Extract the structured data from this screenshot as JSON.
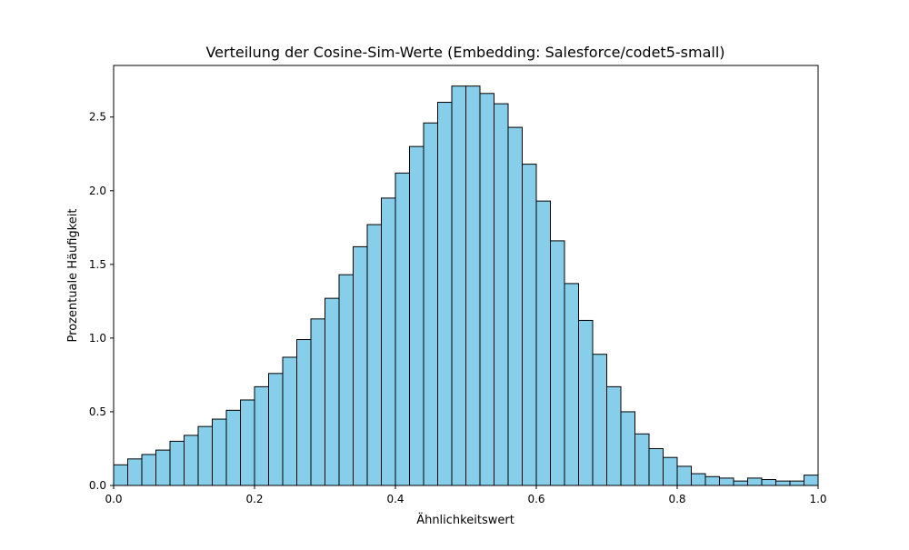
{
  "chart_data": {
    "type": "bar",
    "title": "Verteilung der Cosine-Sim-Werte (Embedding: Salesforce/codet5-small)",
    "xlabel": "Ähnlichkeitswert",
    "ylabel": "Prozentuale Häufigkeit",
    "xlim": [
      0.0,
      1.0
    ],
    "ylim": [
      0.0,
      2.85
    ],
    "grid": false,
    "bar_color": "#87CEEB",
    "edge_color": "#000000",
    "x_ticks": [
      "0.0",
      "0.2",
      "0.4",
      "0.6",
      "0.8",
      "1.0"
    ],
    "y_ticks": [
      "0.0",
      "0.5",
      "1.0",
      "1.5",
      "2.0",
      "2.5"
    ],
    "bin_edges": [
      0.0,
      0.02,
      0.04,
      0.06,
      0.08,
      0.1,
      0.12,
      0.14,
      0.16,
      0.18,
      0.2,
      0.22,
      0.24,
      0.26,
      0.28,
      0.3,
      0.32,
      0.34,
      0.36,
      0.38,
      0.4,
      0.42,
      0.44,
      0.46,
      0.48,
      0.5,
      0.52,
      0.54,
      0.56,
      0.58,
      0.6,
      0.62,
      0.64,
      0.66,
      0.68,
      0.7,
      0.72,
      0.74,
      0.76,
      0.78,
      0.8,
      0.82,
      0.84,
      0.86,
      0.88,
      0.9,
      0.92,
      0.94,
      0.96,
      0.98,
      1.0
    ],
    "values": [
      0.14,
      0.18,
      0.21,
      0.24,
      0.3,
      0.34,
      0.4,
      0.45,
      0.51,
      0.58,
      0.67,
      0.76,
      0.87,
      0.99,
      1.13,
      1.27,
      1.43,
      1.62,
      1.77,
      1.95,
      2.12,
      2.3,
      2.46,
      2.6,
      2.71,
      2.71,
      2.66,
      2.59,
      2.43,
      2.18,
      1.93,
      1.66,
      1.37,
      1.12,
      0.89,
      0.67,
      0.5,
      0.35,
      0.25,
      0.19,
      0.13,
      0.08,
      0.06,
      0.05,
      0.03,
      0.05,
      0.04,
      0.03,
      0.03,
      0.07
    ]
  }
}
